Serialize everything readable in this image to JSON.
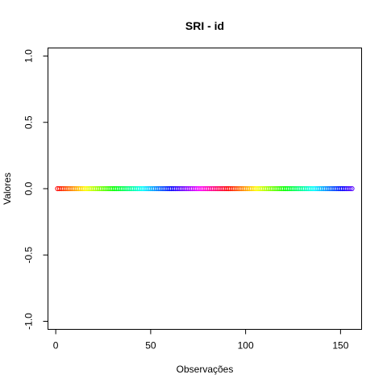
{
  "chart_data": {
    "type": "scatter",
    "title": "SRI - id",
    "xlabel": "Observações",
    "ylabel": "Valores",
    "xlim": [
      1,
      156
    ],
    "ylim": [
      -1,
      1
    ],
    "x_ticks": [
      0,
      50,
      100,
      150
    ],
    "y_ticks": [
      -1.0,
      -0.5,
      0.0,
      0.5,
      1.0
    ],
    "x_tick_labels": [
      "0",
      "50",
      "100",
      "150"
    ],
    "y_tick_labels": [
      "-1.0",
      "-0.5",
      "0.0",
      "0.5",
      "1.0"
    ],
    "grid": false,
    "legend": "none",
    "marker": "open-circle",
    "color_scheme": "rainbow",
    "x_start": 1,
    "x_end": 156,
    "y_value": 0,
    "n_points": 156
  }
}
